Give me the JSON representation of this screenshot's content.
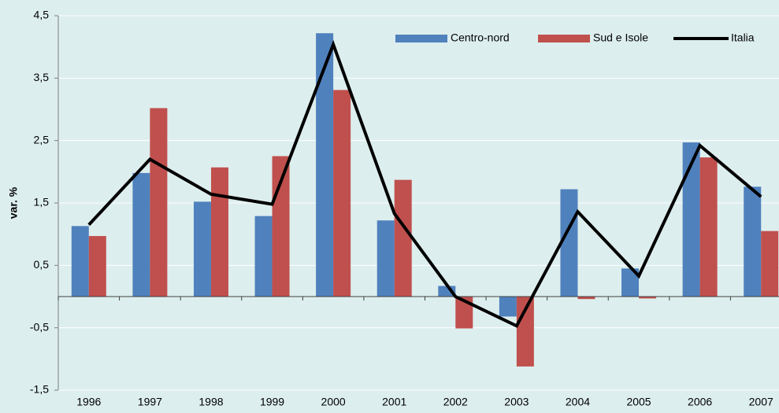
{
  "chart_data": {
    "type": "bar",
    "y_label": "var. %",
    "categories": [
      "1996",
      "1997",
      "1998",
      "1999",
      "2000",
      "2001",
      "2002",
      "2003",
      "2004",
      "2005",
      "2006",
      "2007"
    ],
    "series": [
      {
        "name": "Centro-nord",
        "type": "bar",
        "color": "#4f81bd",
        "values": [
          1.13,
          1.98,
          1.52,
          1.29,
          4.22,
          1.22,
          0.17,
          -0.32,
          1.72,
          0.45,
          2.47,
          1.76
        ]
      },
      {
        "name": "Sud e Isole",
        "type": "bar",
        "color": "#c0504d",
        "values": [
          0.97,
          3.02,
          2.07,
          2.25,
          3.31,
          1.87,
          -0.51,
          -1.12,
          -0.04,
          -0.03,
          2.23,
          1.05
        ]
      },
      {
        "name": "Italia",
        "type": "line",
        "color": "#000000",
        "values": [
          1.15,
          2.2,
          1.64,
          1.48,
          4.04,
          1.33,
          0.0,
          -0.47,
          1.36,
          0.33,
          2.42,
          1.6
        ]
      }
    ],
    "ylim": [
      -1.5,
      4.5
    ],
    "yticks": [
      {
        "value": -1.5,
        "label": "-1,5"
      },
      {
        "value": -0.5,
        "label": "-0,5"
      },
      {
        "value": 0.5,
        "label": "0,5"
      },
      {
        "value": 1.5,
        "label": "1,5"
      },
      {
        "value": 2.5,
        "label": "2,5"
      },
      {
        "value": 3.5,
        "label": "3,5"
      },
      {
        "value": 4.5,
        "label": "4,5"
      }
    ],
    "grid": true,
    "legend": "top-right"
  }
}
